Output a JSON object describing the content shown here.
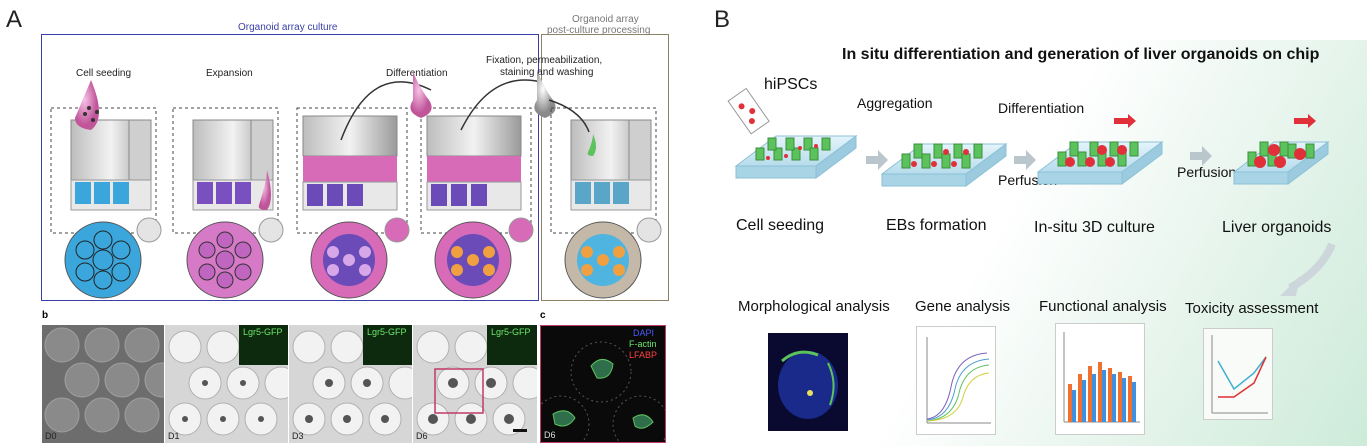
{
  "panel_a": {
    "letter": "A",
    "culture_title": "Organoid array culture",
    "post_title_line1": "Organoid array",
    "post_title_line2": "post-culture processing",
    "steps": {
      "seeding": "Cell seeding",
      "expansion": "Expansion",
      "differentiation": "Differentiation",
      "fixation_line1": "Fixation, permeabilization,",
      "fixation_line2": "staining and washing"
    },
    "sub_b": "b",
    "sub_c": "c",
    "micro_days": [
      "D0",
      "D1",
      "D3",
      "D6"
    ],
    "inset_label": "Lgr5-GFP",
    "stain_day": "D6",
    "stain_labels": [
      "DAPI",
      "F-actin",
      "LFABP"
    ]
  },
  "panel_b": {
    "letter": "B",
    "title": "In situ differentiation and generation of liver organoids on chip",
    "hipscs": "hiPSCs",
    "aggregation": "Aggregation",
    "differentiation": "Differentiation",
    "perfusion1": "Perfusion",
    "perfusion2": "Perfusion",
    "stages": [
      "Cell seeding",
      "EBs formation",
      "In-situ 3D culture",
      "Liver organoids"
    ],
    "analyses": [
      "Morphological analysis",
      "Gene analysis",
      "Functional analysis",
      "Toxicity assessment"
    ]
  },
  "colors": {
    "frame_blue": "#3a3fa8",
    "frame_tan": "#8c8266",
    "medium_pink": "#d86bb8",
    "organoid_green": "#5cc25c",
    "eb_red": "#e0303a"
  }
}
